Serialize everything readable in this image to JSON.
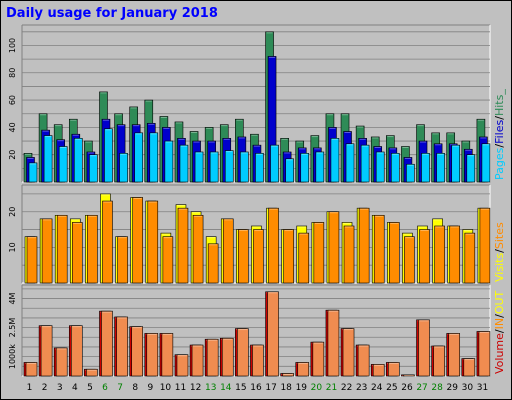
{
  "title": "Daily usage for January 2018",
  "colors": {
    "hits": "#2e8b57",
    "files": "#0000cc",
    "pages": "#00ccff",
    "visits": "#ffff00",
    "sites": "#ff8c00",
    "volume": "#cc0000",
    "in": "#ff8c00",
    "out": "#ffff00",
    "weekend_label": "#008000",
    "background": "#c0c0c0"
  },
  "legends": {
    "hits_panel": [
      {
        "text": "Pages",
        "color": "#00ccff"
      },
      {
        "text": "/",
        "color": "#000000"
      },
      {
        "text": "Files",
        "color": "#0000cc"
      },
      {
        "text": "/",
        "color": "#000000"
      },
      {
        "text": "Hits_",
        "color": "#2e8b57"
      }
    ],
    "visits_panel": [
      {
        "text": "Visits",
        "color": "#ffff00"
      },
      {
        "text": "/",
        "color": "#000000"
      },
      {
        "text": "Sites",
        "color": "#ff8c00"
      }
    ],
    "volume_panel": [
      {
        "text": "Volume",
        "color": "#cc0000"
      },
      {
        "text": "/",
        "color": "#000000"
      },
      {
        "text": "IN",
        "color": "#ff8c00"
      },
      {
        "text": "/",
        "color": "#000000"
      },
      {
        "text": "OUT",
        "color": "#ffff00"
      }
    ]
  },
  "chart_data": [
    {
      "type": "bar",
      "panel": "hits",
      "categories": [
        "1",
        "2",
        "3",
        "4",
        "5",
        "6",
        "7",
        "8",
        "9",
        "10",
        "11",
        "12",
        "13",
        "14",
        "15",
        "16",
        "17",
        "18",
        "19",
        "20",
        "21",
        "22",
        "23",
        "24",
        "25",
        "26",
        "27",
        "28",
        "29",
        "30",
        "31"
      ],
      "weekend_days": [
        "6",
        "7",
        "13",
        "14",
        "20",
        "21",
        "27",
        "28"
      ],
      "ylim": [
        0,
        115
      ],
      "yticks": [
        "20",
        "40",
        "60",
        "80",
        "100"
      ],
      "series": [
        {
          "name": "Hits",
          "values": [
            21,
            50,
            42,
            46,
            30,
            66,
            50,
            55,
            60,
            48,
            44,
            37,
            40,
            42,
            46,
            35,
            110,
            32,
            30,
            34,
            50,
            50,
            41,
            33,
            34,
            26,
            42,
            36,
            36,
            30,
            46
          ]
        },
        {
          "name": "Files",
          "values": [
            18,
            38,
            31,
            35,
            22,
            46,
            42,
            42,
            43,
            40,
            32,
            30,
            30,
            32,
            33,
            27,
            92,
            22,
            25,
            25,
            40,
            37,
            32,
            26,
            25,
            18,
            30,
            28,
            28,
            24,
            33
          ]
        },
        {
          "name": "Pages",
          "values": [
            14,
            34,
            26,
            32,
            20,
            39,
            21,
            36,
            36,
            30,
            27,
            22,
            22,
            23,
            22,
            21,
            27,
            17,
            21,
            22,
            32,
            28,
            27,
            22,
            21,
            13,
            21,
            21,
            27,
            20,
            28
          ]
        }
      ],
      "xlabel": "",
      "ylabel": "",
      "grid": true
    },
    {
      "type": "bar",
      "panel": "visits",
      "categories": [
        "1",
        "2",
        "3",
        "4",
        "5",
        "6",
        "7",
        "8",
        "9",
        "10",
        "11",
        "12",
        "13",
        "14",
        "15",
        "16",
        "17",
        "18",
        "19",
        "20",
        "21",
        "22",
        "23",
        "24",
        "25",
        "26",
        "27",
        "28",
        "29",
        "30",
        "31"
      ],
      "ylim": [
        0,
        27.5
      ],
      "yticks": [
        "10",
        "20"
      ],
      "series": [
        {
          "name": "Visits",
          "values": [
            13,
            18,
            19,
            18,
            19,
            25,
            13,
            24,
            23,
            14,
            22,
            20,
            13,
            18,
            15,
            16,
            21,
            15,
            16,
            17,
            20,
            17,
            21,
            19,
            17,
            14,
            16,
            18,
            16,
            15,
            21
          ]
        },
        {
          "name": "Sites",
          "values": [
            13,
            18,
            19,
            17,
            19,
            23,
            13,
            24,
            23,
            13,
            21,
            19,
            11,
            18,
            15,
            15,
            21,
            15,
            14,
            17,
            20,
            16,
            21,
            19,
            17,
            13,
            15,
            16,
            16,
            14,
            21
          ]
        }
      ],
      "xlabel": "",
      "ylabel": "",
      "grid": true
    },
    {
      "type": "bar",
      "panel": "volume",
      "categories": [
        "1",
        "2",
        "3",
        "4",
        "5",
        "6",
        "7",
        "8",
        "9",
        "10",
        "11",
        "12",
        "13",
        "14",
        "15",
        "16",
        "17",
        "18",
        "19",
        "20",
        "21",
        "22",
        "23",
        "24",
        "25",
        "26",
        "27",
        "28",
        "29",
        "30",
        "31"
      ],
      "ylim": [
        0,
        4700
      ],
      "yticks": [
        "1000k",
        "2.5M",
        "4M"
      ],
      "series": [
        {
          "name": "Volume",
          "values": [
            700,
            2600,
            1450,
            2600,
            350,
            3350,
            3050,
            2550,
            2200,
            2200,
            1100,
            1600,
            1900,
            1950,
            2450,
            1600,
            4350,
            130,
            700,
            1750,
            3400,
            2450,
            1600,
            600,
            700,
            60,
            2900,
            1550,
            2200,
            900,
            2300
          ]
        },
        {
          "name": "IN",
          "values": [
            700,
            2600,
            1450,
            2600,
            350,
            3350,
            3050,
            2550,
            2200,
            2200,
            1100,
            1600,
            1900,
            1950,
            2450,
            1600,
            4350,
            130,
            700,
            1750,
            3400,
            2450,
            1600,
            600,
            700,
            60,
            2900,
            1550,
            2200,
            900,
            2300
          ]
        }
      ],
      "xlabel": "",
      "ylabel": "",
      "grid": true
    }
  ]
}
